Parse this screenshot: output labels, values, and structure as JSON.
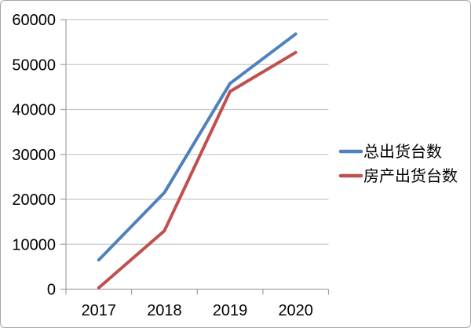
{
  "chart_data": {
    "type": "line",
    "categories": [
      "2017",
      "2018",
      "2019",
      "2020"
    ],
    "series": [
      {
        "name": "总出货台数",
        "color": "#4F81BD",
        "values": [
          6500,
          21500,
          45800,
          56800
        ]
      },
      {
        "name": "房产出货台数",
        "color": "#C0504D",
        "values": [
          300,
          13000,
          44000,
          52700
        ]
      }
    ],
    "title": "",
    "xlabel": "",
    "ylabel": "",
    "ylim": [
      0,
      60000
    ],
    "yticks": [
      0,
      10000,
      20000,
      30000,
      40000,
      50000,
      60000
    ],
    "grid": "horizontal-only",
    "legend_position": "right",
    "line_width": 4,
    "colors": {
      "gridline": "#c9c9c9",
      "axis": "#a6a6a6",
      "tick": "#a6a6a6",
      "label_text": "#000000",
      "legend_text": "#000000",
      "background": "#ffffff",
      "frame_border": "#a6a6a6"
    }
  }
}
